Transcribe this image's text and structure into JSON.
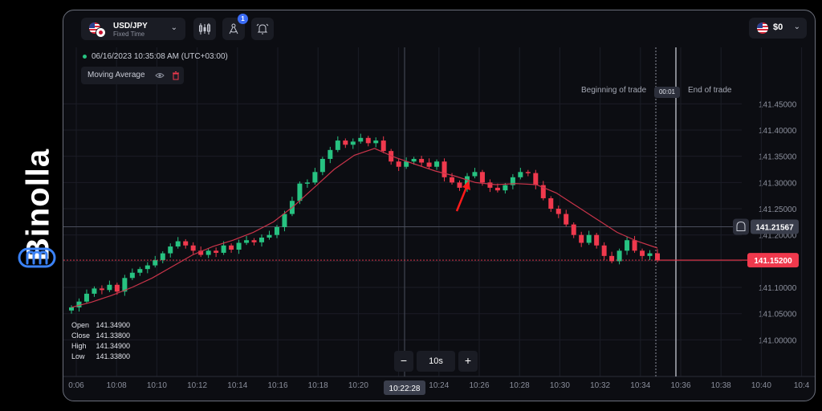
{
  "brand": {
    "name": "Binolla"
  },
  "toolbar": {
    "asset": {
      "pair": "USD/JPY",
      "mode": "Fixed Time"
    },
    "indicators_icon": "candlestick-icon",
    "drawing_icon": "drawing-tools-icon",
    "drawing_badge": "1",
    "alert_icon": "alarm-icon",
    "balance": {
      "currency_flag": "us-flag-icon",
      "value": "$0"
    }
  },
  "status": {
    "datetime": "06/16/2023  10:35:08 AM  (UTC+03:00)"
  },
  "indicator": {
    "label": "Moving Average"
  },
  "trade": {
    "begin_label": "Beginning of trade",
    "timer": "00:01",
    "end_label": "End of trade"
  },
  "ohlc": {
    "open_label": "Open",
    "open": "141.34900",
    "close_label": "Close",
    "close": "141.33800",
    "high_label": "High",
    "high": "141.34900",
    "low_label": "Low",
    "low": "141.33800"
  },
  "zoom": {
    "minus": "−",
    "value": "10s",
    "plus": "+"
  },
  "colors": {
    "up": "#27c281",
    "down": "#f0394d",
    "ma": "#c9344a",
    "accent": "#3b6cf6"
  },
  "chart_data": {
    "type": "candlestick",
    "pair": "USD/JPY",
    "y_ticks": [
      "141.45000",
      "141.40000",
      "141.35000",
      "141.30000",
      "141.25000",
      "141.20000",
      "141.15000",
      "141.10000",
      "141.05000",
      "141.00000"
    ],
    "ylim": [
      140.97,
      141.475
    ],
    "x_ticks": [
      "0:06",
      "10:08",
      "10:10",
      "10:12",
      "10:14",
      "10:16",
      "10:18",
      "10:20",
      "10:22",
      "10:24",
      "10:26",
      "10:28",
      "10:30",
      "10:32",
      "10:34",
      "10:36",
      "10:38",
      "10:40",
      "10:4"
    ],
    "crosshair": {
      "time": "10:22:28",
      "price": "141.21567"
    },
    "current_price": "141.15200",
    "current_price_value": 141.152,
    "end_of_trade_time": "10:35:08",
    "close_series": [
      141.062,
      141.073,
      141.088,
      141.098,
      141.095,
      141.105,
      141.092,
      141.118,
      141.128,
      141.135,
      141.142,
      141.152,
      141.165,
      141.178,
      141.188,
      141.18,
      141.17,
      141.162,
      141.17,
      141.166,
      141.18,
      141.172,
      141.185,
      141.19,
      141.186,
      141.195,
      141.2,
      141.215,
      141.24,
      141.265,
      141.298,
      141.3,
      141.32,
      141.345,
      141.362,
      141.38,
      141.372,
      141.378,
      141.385,
      141.375,
      141.38,
      141.36,
      141.34,
      141.33,
      141.34,
      141.345,
      141.338,
      141.33,
      141.34,
      141.31,
      141.3,
      141.29,
      141.312,
      141.32,
      141.3,
      141.29,
      141.285,
      141.295,
      141.31,
      141.32,
      141.318,
      141.295,
      141.27,
      141.25,
      141.24,
      141.22,
      141.2,
      141.185,
      141.2,
      141.18,
      141.16,
      141.15,
      141.17,
      141.19,
      141.17,
      141.16,
      141.165,
      141.152
    ],
    "moving_average": [
      141.062,
      141.072,
      141.085,
      141.1,
      141.118,
      141.14,
      141.162,
      141.178,
      141.19,
      141.205,
      141.225,
      141.255,
      141.29,
      141.325,
      141.352,
      141.365,
      141.348,
      141.335,
      141.322,
      141.312,
      141.3,
      141.296,
      141.298,
      141.296,
      141.28,
      141.255,
      141.23,
      141.205,
      141.188,
      141.175
    ]
  }
}
